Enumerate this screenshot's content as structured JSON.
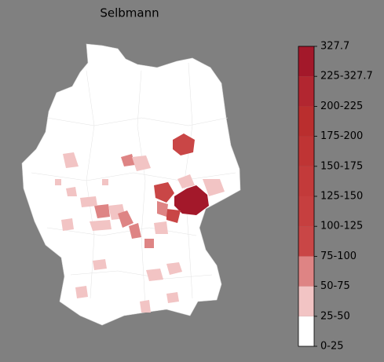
{
  "title": "Selbmann",
  "colorbar": {
    "labels": [
      "0-25",
      "25-50",
      "50-75",
      "75-100",
      "100-125",
      "125-150",
      "150-175",
      "175-200",
      "200-225",
      "225-327.7",
      "327.7"
    ],
    "colors": [
      "#ffffff",
      "#f2c4c4",
      "#de8484",
      "#c94646",
      "#c63f3f",
      "#c33a3a",
      "#bf3434",
      "#ba2e2e",
      "#b22630",
      "#a3182a"
    ]
  }
}
